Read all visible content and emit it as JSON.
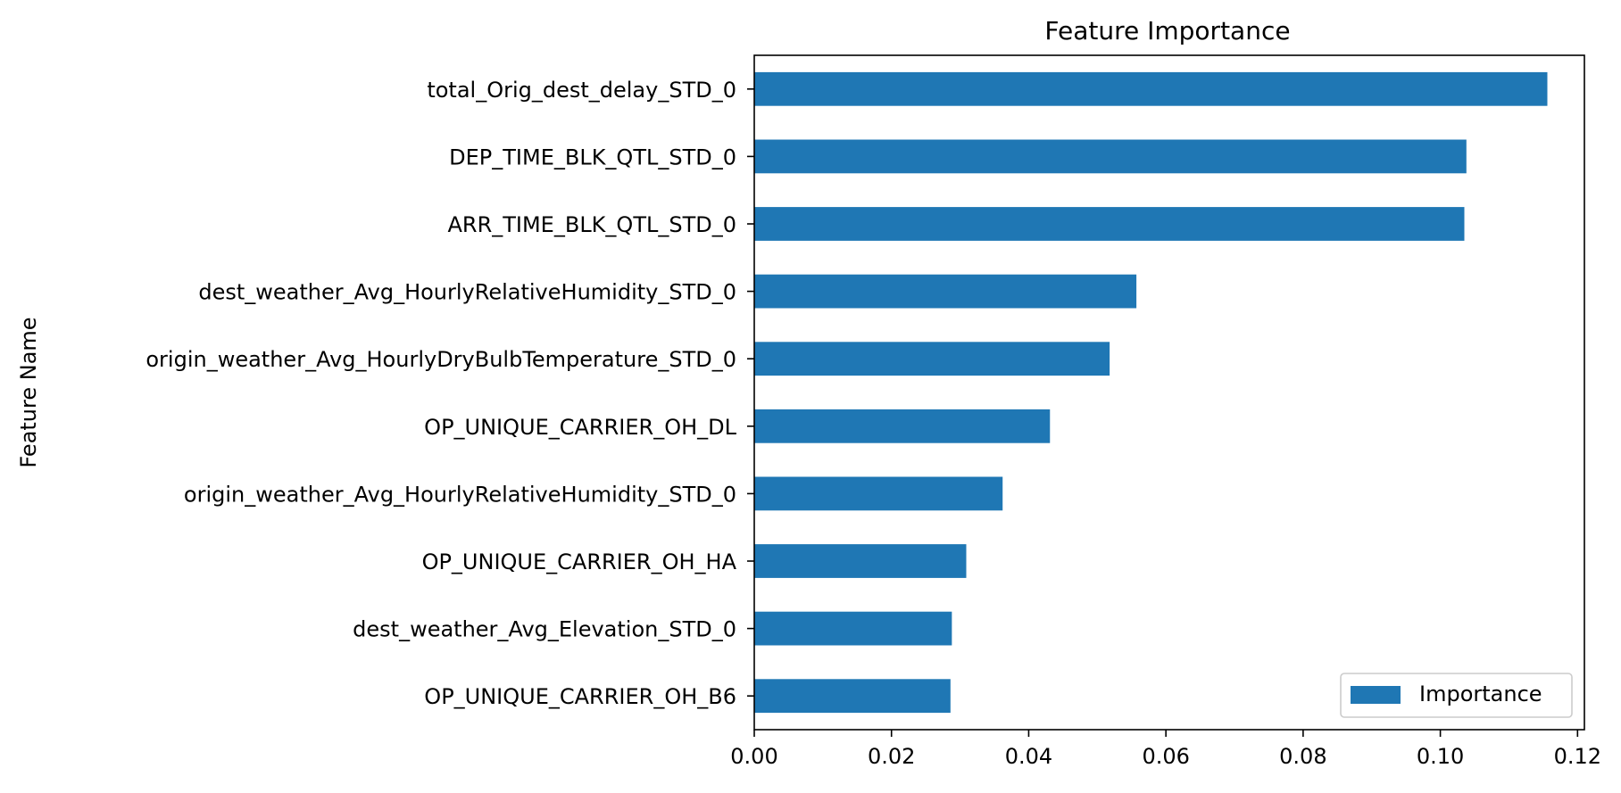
{
  "chart_data": {
    "type": "bar",
    "orientation": "horizontal",
    "title": "Feature Importance",
    "xlabel": "",
    "ylabel": "Feature Name",
    "xlim": [
      0,
      0.121
    ],
    "xticks": [
      "0.00",
      "0.02",
      "0.04",
      "0.06",
      "0.08",
      "0.10",
      "0.12"
    ],
    "grid": false,
    "legend_position": "bottom-right",
    "categories": [
      "total_Orig_dest_delay_STD_0",
      "DEP_TIME_BLK_QTL_STD_0",
      "ARR_TIME_BLK_QTL_STD_0",
      "dest_weather_Avg_HourlyRelativeHumidity_STD_0",
      "origin_weather_Avg_HourlyDryBulbTemperature_STD_0",
      "OP_UNIQUE_CARRIER_OH_DL",
      "origin_weather_Avg_HourlyRelativeHumidity_STD_0",
      "OP_UNIQUE_CARRIER_OH_HA",
      "dest_weather_Avg_Elevation_STD_0",
      "OP_UNIQUE_CARRIER_OH_B6"
    ],
    "series": [
      {
        "name": "Importance",
        "color": "#1f77b4",
        "values": [
          0.1156,
          0.1038,
          0.1035,
          0.0557,
          0.0518,
          0.0431,
          0.0362,
          0.0309,
          0.0288,
          0.0286
        ]
      }
    ]
  }
}
